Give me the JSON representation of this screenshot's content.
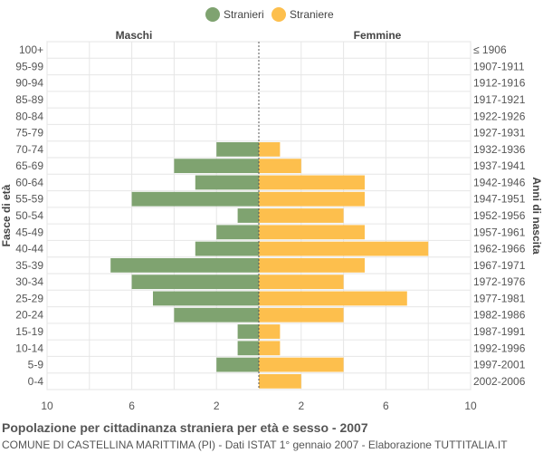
{
  "chart_data": {
    "type": "bar",
    "title": "Popolazione per cittadinanza straniera per età e sesso - 2007",
    "subtitle": "COMUNE DI CASTELLINA MARITTIMA (PI) - Dati ISTAT 1° gennaio 2007 - Elaborazione TUTTITALIA.IT",
    "ylabel_left": "Fasce di età",
    "ylabel_right": "Anni di nascita",
    "left_header": "Maschi",
    "right_header": "Femmine",
    "xlim": [
      -10,
      10
    ],
    "x_ticks": [
      "10",
      "6",
      "2",
      "2",
      "6",
      "10"
    ],
    "x_tick_values": [
      -10,
      -6,
      -2,
      2,
      6,
      10
    ],
    "legend_position": "top-center",
    "grid": true,
    "categories": [
      "100+",
      "95-99",
      "90-94",
      "85-89",
      "80-84",
      "75-79",
      "70-74",
      "65-69",
      "60-64",
      "55-59",
      "50-54",
      "45-49",
      "40-44",
      "35-39",
      "30-34",
      "25-29",
      "20-24",
      "15-19",
      "10-14",
      "5-9",
      "0-4"
    ],
    "birth_years": [
      "≤ 1906",
      "1907-1911",
      "1912-1916",
      "1917-1921",
      "1922-1926",
      "1927-1931",
      "1932-1936",
      "1937-1941",
      "1942-1946",
      "1947-1951",
      "1952-1956",
      "1957-1961",
      "1962-1966",
      "1967-1971",
      "1972-1976",
      "1977-1981",
      "1982-1986",
      "1987-1991",
      "1992-1996",
      "1997-2001",
      "2002-2006"
    ],
    "series": [
      {
        "name": "Stranieri",
        "color": "#7fa370",
        "values": [
          0,
          0,
          0,
          0,
          0,
          0,
          2,
          4,
          3,
          6,
          1,
          2,
          3,
          7,
          6,
          5,
          4,
          1,
          1,
          2,
          0
        ]
      },
      {
        "name": "Straniere",
        "color": "#fdbf4d",
        "values": [
          0,
          0,
          0,
          0,
          0,
          0,
          1,
          2,
          5,
          5,
          4,
          5,
          8,
          5,
          4,
          7,
          4,
          1,
          1,
          4,
          2
        ]
      }
    ]
  }
}
